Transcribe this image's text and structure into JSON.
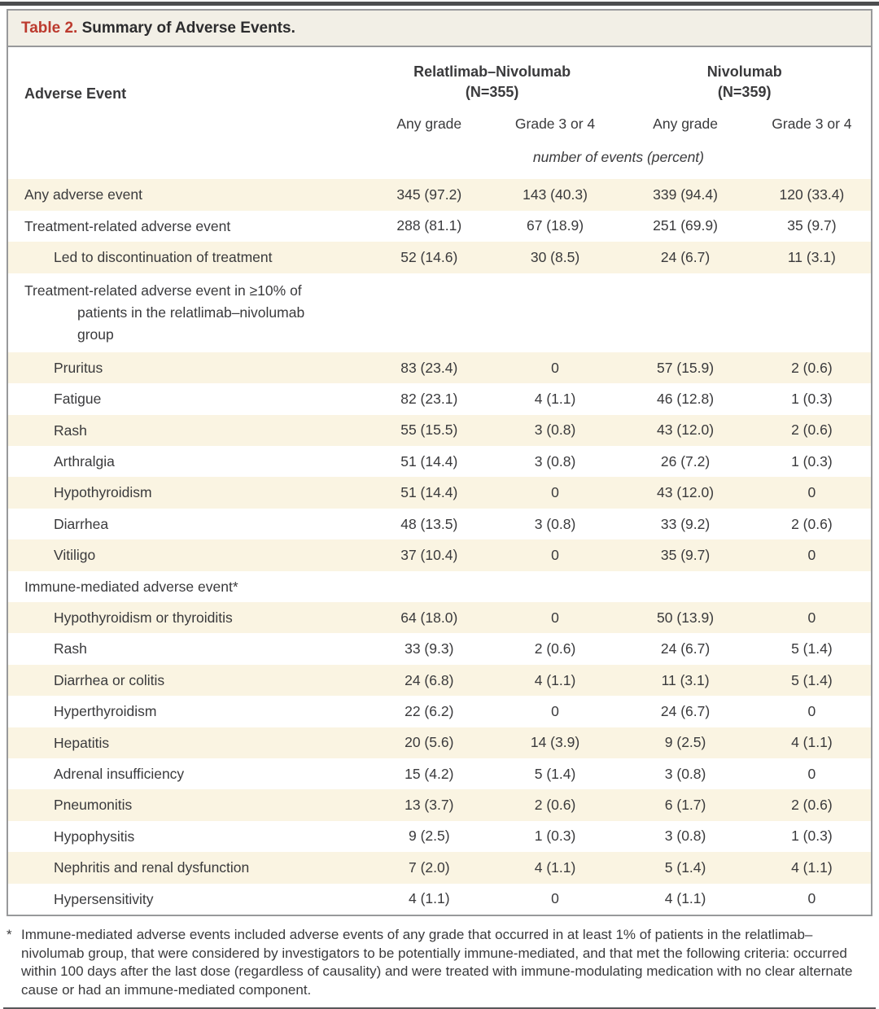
{
  "title": {
    "label": "Table 2.",
    "text": "Summary of Adverse Events."
  },
  "table": {
    "row_header": "Adverse Event",
    "groups": [
      {
        "name": "Relatlimab–Nivolumab",
        "n": "(N=355)"
      },
      {
        "name": "Nivolumab",
        "n": "(N=359)"
      }
    ],
    "subheaders": [
      "Any grade",
      "Grade 3 or 4",
      "Any grade",
      "Grade 3 or 4"
    ],
    "units_note": "number of events (percent)",
    "rows": [
      {
        "label": "Any adverse event",
        "indent": 0,
        "shaded": true,
        "hanging": false,
        "values": [
          "345 (97.2)",
          "143 (40.3)",
          "339 (94.4)",
          "120 (33.4)"
        ]
      },
      {
        "label": "Treatment-related adverse event",
        "indent": 0,
        "shaded": false,
        "hanging": false,
        "values": [
          "288 (81.1)",
          "67 (18.9)",
          "251 (69.9)",
          "35 (9.7)"
        ]
      },
      {
        "label": "Led to discontinuation of treatment",
        "indent": 1,
        "shaded": true,
        "hanging": false,
        "values": [
          "52 (14.6)",
          "30 (8.5)",
          "24 (6.7)",
          "11 (3.1)"
        ]
      },
      {
        "label": "Treatment-related adverse event in ≥10% of patients in the relatlimab–nivolumab group",
        "indent": 0,
        "shaded": false,
        "hanging": true,
        "values": [
          "",
          "",
          "",
          ""
        ]
      },
      {
        "label": "Pruritus",
        "indent": 1,
        "shaded": true,
        "hanging": false,
        "values": [
          "83 (23.4)",
          "0",
          "57 (15.9)",
          "2 (0.6)"
        ]
      },
      {
        "label": "Fatigue",
        "indent": 1,
        "shaded": false,
        "hanging": false,
        "values": [
          "82 (23.1)",
          "4 (1.1)",
          "46 (12.8)",
          "1 (0.3)"
        ]
      },
      {
        "label": "Rash",
        "indent": 1,
        "shaded": true,
        "hanging": false,
        "values": [
          "55 (15.5)",
          "3 (0.8)",
          "43 (12.0)",
          "2 (0.6)"
        ]
      },
      {
        "label": "Arthralgia",
        "indent": 1,
        "shaded": false,
        "hanging": false,
        "values": [
          "51 (14.4)",
          "3 (0.8)",
          "26 (7.2)",
          "1 (0.3)"
        ]
      },
      {
        "label": "Hypothyroidism",
        "indent": 1,
        "shaded": true,
        "hanging": false,
        "values": [
          "51 (14.4)",
          "0",
          "43 (12.0)",
          "0"
        ]
      },
      {
        "label": "Diarrhea",
        "indent": 1,
        "shaded": false,
        "hanging": false,
        "values": [
          "48 (13.5)",
          "3 (0.8)",
          "33 (9.2)",
          "2 (0.6)"
        ]
      },
      {
        "label": "Vitiligo",
        "indent": 1,
        "shaded": true,
        "hanging": false,
        "values": [
          "37 (10.4)",
          "0",
          "35 (9.7)",
          "0"
        ]
      },
      {
        "label": "Immune-mediated adverse event*",
        "indent": 0,
        "shaded": false,
        "hanging": false,
        "values": [
          "",
          "",
          "",
          ""
        ]
      },
      {
        "label": "Hypothyroidism or thyroiditis",
        "indent": 1,
        "shaded": true,
        "hanging": false,
        "values": [
          "64 (18.0)",
          "0",
          "50 (13.9)",
          "0"
        ]
      },
      {
        "label": "Rash",
        "indent": 1,
        "shaded": false,
        "hanging": false,
        "values": [
          "33 (9.3)",
          "2 (0.6)",
          "24 (6.7)",
          "5 (1.4)"
        ]
      },
      {
        "label": "Diarrhea or colitis",
        "indent": 1,
        "shaded": true,
        "hanging": false,
        "values": [
          "24 (6.8)",
          "4 (1.1)",
          "11 (3.1)",
          "5 (1.4)"
        ]
      },
      {
        "label": "Hyperthyroidism",
        "indent": 1,
        "shaded": false,
        "hanging": false,
        "values": [
          "22 (6.2)",
          "0",
          "24 (6.7)",
          "0"
        ]
      },
      {
        "label": "Hepatitis",
        "indent": 1,
        "shaded": true,
        "hanging": false,
        "values": [
          "20 (5.6)",
          "14 (3.9)",
          "9 (2.5)",
          "4 (1.1)"
        ]
      },
      {
        "label": "Adrenal insufficiency",
        "indent": 1,
        "shaded": false,
        "hanging": false,
        "values": [
          "15 (4.2)",
          "5 (1.4)",
          "3 (0.8)",
          "0"
        ]
      },
      {
        "label": "Pneumonitis",
        "indent": 1,
        "shaded": true,
        "hanging": false,
        "values": [
          "13 (3.7)",
          "2 (0.6)",
          "6 (1.7)",
          "2 (0.6)"
        ]
      },
      {
        "label": "Hypophysitis",
        "indent": 1,
        "shaded": false,
        "hanging": false,
        "values": [
          "9 (2.5)",
          "1 (0.3)",
          "3 (0.8)",
          "1 (0.3)"
        ]
      },
      {
        "label": "Nephritis and renal dysfunction",
        "indent": 1,
        "shaded": true,
        "hanging": false,
        "values": [
          "7 (2.0)",
          "4 (1.1)",
          "5 (1.4)",
          "4 (1.1)"
        ]
      },
      {
        "label": "Hypersensitivity",
        "indent": 1,
        "shaded": false,
        "hanging": false,
        "values": [
          "4 (1.1)",
          "0",
          "4 (1.1)",
          "0"
        ]
      }
    ]
  },
  "footnote": {
    "marker": "*",
    "text": "Immune-mediated adverse events included adverse events of any grade that occurred in at least 1% of patients in the relatlimab–nivolumab group, that were considered by investigators to be potentially immune-mediated, and that met the following criteria: occurred within 100 days after the last dose (regardless of causality) and were treated with immune-modulating medication with no clear alternate cause or had an immune-mediated component."
  },
  "colors": {
    "accent_red": "#bc3a2e",
    "shaded_row": "#faf4e2",
    "title_bar_bg": "#f2efe6",
    "border_gray": "#98999b",
    "top_rule": "#4c4d4f",
    "text": "#3a3a3c"
  }
}
